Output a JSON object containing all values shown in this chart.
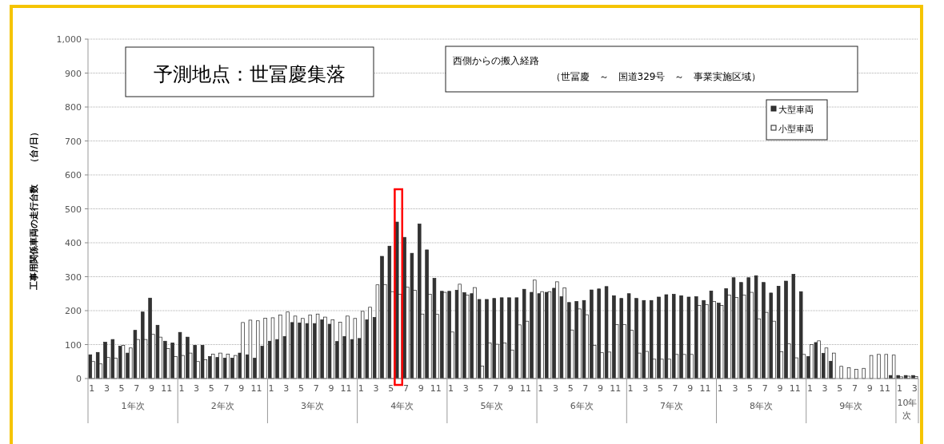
{
  "chart_data": {
    "type": "bar",
    "title": "予測地点：世冨慶集落",
    "subtitle": "西側からの搬入経路",
    "ylabel": "工事用関係車両の走行台数　　（台/日）",
    "annotations": [
      "（世冨慶　～　国道329号　～　事業実施区域）",
      "1年次",
      "2年次",
      "3年次",
      "4年次",
      "5年次",
      "6年次",
      "7年次",
      "8年次",
      "9年次",
      "10年次"
    ],
    "categories": [
      "1",
      null,
      "3",
      null,
      "5",
      null,
      "7",
      null,
      "9",
      null,
      "11",
      null,
      "1",
      null,
      "3",
      null,
      "5",
      null,
      "7",
      null,
      "9",
      null,
      "11",
      null,
      "1",
      null,
      "3",
      null,
      "5",
      null,
      "7",
      null,
      "9",
      null,
      "11",
      null,
      "1",
      null,
      "3",
      null,
      "5",
      null,
      "7",
      null,
      "9",
      null,
      "11",
      null,
      "1",
      null,
      "3",
      null,
      "5",
      null,
      "7",
      null,
      "9",
      null,
      "11",
      null,
      "1",
      null,
      "3",
      null,
      "5",
      null,
      "7",
      null,
      "9",
      null,
      "11",
      null,
      "1",
      null,
      "3",
      null,
      "5",
      null,
      "7",
      null,
      "9",
      null,
      "11",
      null,
      "1",
      null,
      "3",
      null,
      "5",
      null,
      "7",
      null,
      "9",
      null,
      "11",
      null,
      "1",
      null,
      "3",
      null,
      "5",
      null,
      "7",
      null,
      "9",
      null,
      "11",
      null,
      "1",
      null,
      "3"
    ],
    "series": [
      {
        "name": "大型車両",
        "color": "#333333",
        "values": [
          70,
          77,
          107,
          115,
          95,
          75,
          142,
          196,
          237,
          157,
          110,
          105,
          136,
          122,
          98,
          98,
          65,
          62,
          60,
          60,
          75,
          70,
          60,
          95,
          110,
          115,
          124,
          165,
          164,
          162,
          162,
          173,
          160,
          109,
          124,
          115,
          118,
          173,
          180,
          360,
          390,
          461,
          416,
          369,
          455,
          379,
          295,
          257,
          257,
          260,
          253,
          250,
          233,
          233,
          236,
          238,
          238,
          238,
          263,
          254,
          250,
          254,
          266,
          241,
          224,
          227,
          230,
          261,
          264,
          271,
          244,
          236,
          250,
          236,
          230,
          230,
          240,
          247,
          248,
          244,
          240,
          241,
          230,
          258,
          222,
          265,
          297,
          283,
          297,
          303,
          283,
          252,
          272,
          287,
          307,
          256,
          65,
          106,
          74,
          51,
          0,
          0,
          0,
          0,
          0,
          0,
          0,
          9,
          9,
          9,
          9
        ]
      },
      {
        "name": "小型車両",
        "color": "#ffffff",
        "values": [
          50,
          43,
          62,
          60,
          98,
          90,
          115,
          115,
          130,
          122,
          88,
          65,
          68,
          75,
          50,
          55,
          72,
          75,
          72,
          68,
          165,
          172,
          170,
          178,
          179,
          187,
          196,
          184,
          177,
          187,
          190,
          181,
          173,
          166,
          184,
          177,
          198,
          210,
          276,
          277,
          256,
          248,
          269,
          260,
          190,
          248,
          189,
          254,
          137,
          278,
          246,
          268,
          37,
          105,
          101,
          105,
          84,
          158,
          169,
          290,
          256,
          256,
          285,
          267,
          143,
          205,
          188,
          98,
          76,
          78,
          159,
          159,
          142,
          75,
          80,
          57,
          57,
          57,
          71,
          71,
          71,
          215,
          218,
          227,
          215,
          246,
          239,
          246,
          254,
          176,
          195,
          169,
          79,
          102,
          61,
          71,
          100,
          111,
          90,
          75,
          36,
          32,
          27,
          30,
          68,
          71,
          71,
          69,
          5,
          7,
          6
        ]
      }
    ],
    "ylim": [
      0,
      1000
    ],
    "yticks": [
      0,
      100,
      200,
      300,
      400,
      500,
      600,
      700,
      800,
      900,
      {
        "value": 1000,
        "label": "1,000"
      }
    ],
    "grid": "y",
    "legend": "top right"
  }
}
